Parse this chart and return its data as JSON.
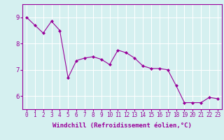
{
  "x": [
    0,
    1,
    2,
    3,
    4,
    5,
    6,
    7,
    8,
    9,
    10,
    11,
    12,
    13,
    14,
    15,
    16,
    17,
    18,
    19,
    20,
    21,
    22,
    23
  ],
  "y": [
    9.0,
    8.7,
    8.4,
    8.85,
    8.5,
    6.7,
    7.35,
    7.45,
    7.5,
    7.4,
    7.2,
    7.75,
    7.65,
    7.45,
    7.15,
    7.05,
    7.05,
    7.0,
    6.4,
    5.75,
    5.75,
    5.75,
    5.95,
    5.9
  ],
  "line_color": "#990099",
  "marker": "D",
  "markersize": 2,
  "linewidth": 0.8,
  "bg_color": "#d5f0f0",
  "grid_color": "#ffffff",
  "xlabel": "Windchill (Refroidissement éolien,°C)",
  "xlabel_color": "#990099",
  "tick_color": "#990099",
  "xlim": [
    -0.5,
    23.5
  ],
  "ylim": [
    5.5,
    9.5
  ],
  "yticks": [
    6,
    7,
    8,
    9
  ],
  "xticks": [
    0,
    1,
    2,
    3,
    4,
    5,
    6,
    7,
    8,
    9,
    10,
    11,
    12,
    13,
    14,
    15,
    16,
    17,
    18,
    19,
    20,
    21,
    22,
    23
  ],
  "xtick_labels": [
    "0",
    "1",
    "2",
    "3",
    "4",
    "5",
    "6",
    "7",
    "8",
    "9",
    "10",
    "11",
    "12",
    "13",
    "14",
    "15",
    "16",
    "17",
    "18",
    "19",
    "20",
    "21",
    "22",
    "23"
  ],
  "tick_labelsize": 5.5,
  "ytick_labelsize": 6.5,
  "xlabel_fontsize": 6.5
}
